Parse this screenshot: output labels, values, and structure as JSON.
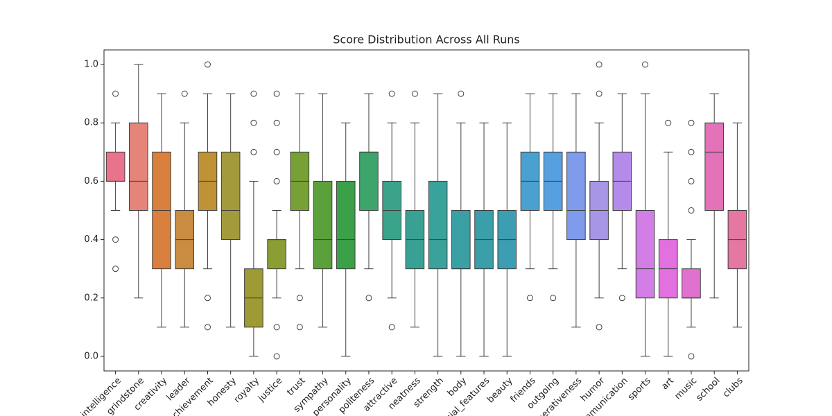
{
  "chart_data": {
    "type": "box",
    "title": "Score Distribution Across All Runs",
    "categories": [
      "intelligence",
      "grindstone",
      "creativity",
      "leader",
      "achievement",
      "honesty",
      "royalty",
      "justice",
      "trust",
      "sympathy",
      "personality",
      "politeness",
      "attractive",
      "neatness",
      "strength",
      "body",
      "facial_features",
      "beauty",
      "friends",
      "outgoing",
      "cooperativeness",
      "humor",
      "communication",
      "sports",
      "art",
      "music",
      "school",
      "clubs"
    ],
    "q1": [
      0.6,
      0.5,
      0.3,
      0.3,
      0.5,
      0.4,
      0.1,
      0.3,
      0.5,
      0.3,
      0.3,
      0.5,
      0.4,
      0.3,
      0.3,
      0.3,
      0.3,
      0.3,
      0.5,
      0.5,
      0.4,
      0.4,
      0.5,
      0.2,
      0.2,
      0.2,
      0.5,
      0.3
    ],
    "median": [
      0.6,
      0.6,
      0.5,
      0.4,
      0.6,
      0.5,
      0.2,
      0.4,
      0.6,
      0.4,
      0.4,
      0.7,
      0.5,
      0.4,
      0.4,
      0.3,
      0.4,
      0.4,
      0.6,
      0.6,
      0.5,
      0.5,
      0.6,
      0.3,
      0.3,
      0.2,
      0.7,
      0.4
    ],
    "q3": [
      0.7,
      0.8,
      0.7,
      0.5,
      0.7,
      0.7,
      0.3,
      0.4,
      0.7,
      0.6,
      0.6,
      0.7,
      0.6,
      0.5,
      0.6,
      0.5,
      0.5,
      0.5,
      0.7,
      0.7,
      0.7,
      0.6,
      0.7,
      0.5,
      0.4,
      0.3,
      0.8,
      0.5
    ],
    "whisker_low": [
      0.5,
      0.2,
      0.1,
      0.1,
      0.3,
      0.1,
      0,
      0.2,
      0.3,
      0.1,
      0,
      0.3,
      0.2,
      0.1,
      0,
      0,
      0,
      0,
      0.3,
      0.3,
      0.1,
      0.2,
      0.3,
      0,
      0,
      0.1,
      0.2,
      0.1
    ],
    "whisker_high": [
      0.8,
      1,
      0.9,
      0.8,
      0.9,
      0.9,
      0.6,
      0.5,
      0.9,
      0.9,
      0.8,
      0.9,
      0.8,
      0.8,
      0.9,
      0.8,
      0.8,
      0.8,
      0.9,
      0.9,
      0.9,
      0.8,
      0.9,
      0.9,
      0.7,
      0.4,
      0.9,
      0.8
    ],
    "outliers": [
      [
        0.9,
        0.4,
        0.3
      ],
      [],
      [],
      [
        0.9
      ],
      [
        1,
        0.2,
        0.1
      ],
      [],
      [
        0.7,
        0.8,
        0.9
      ],
      [
        0.6,
        0.7,
        0.8,
        0.9,
        0.1,
        0
      ],
      [
        0.2,
        0.1
      ],
      [],
      [],
      [
        0.2
      ],
      [
        0.9,
        0.1
      ],
      [
        0.9
      ],
      [],
      [
        0.9
      ],
      [],
      [],
      [
        0.2
      ],
      [
        0.2
      ],
      [],
      [
        1,
        0.9,
        0.1
      ],
      [
        0.2
      ],
      [
        1
      ],
      [
        0.8
      ],
      [
        0.5,
        0.6,
        0.7,
        0.8,
        0
      ],
      [],
      []
    ],
    "colors": [
      "#e9738d",
      "#e58478",
      "#d9803f",
      "#c98c41",
      "#bf9236",
      "#a39a3c",
      "#9e9a34",
      "#8b9e34",
      "#77a036",
      "#5ba13b",
      "#3aa148",
      "#3da56c",
      "#3aa38a",
      "#38a193",
      "#39a29a",
      "#3aa0a3",
      "#3b9faa",
      "#3d9db2",
      "#4aa0ce",
      "#56a0e0",
      "#7e9bec",
      "#a796e6",
      "#b58be9",
      "#d27ee6",
      "#e270df",
      "#e171cf",
      "#e372b8",
      "#e478a0"
    ],
    "ylim": [
      -0.05,
      1.05
    ],
    "yticks": [
      {
        "value": 0,
        "label": "0.0"
      },
      0.2,
      0.4,
      0.6,
      0.8,
      {
        "value": 1,
        "label": "1.0"
      }
    ]
  }
}
